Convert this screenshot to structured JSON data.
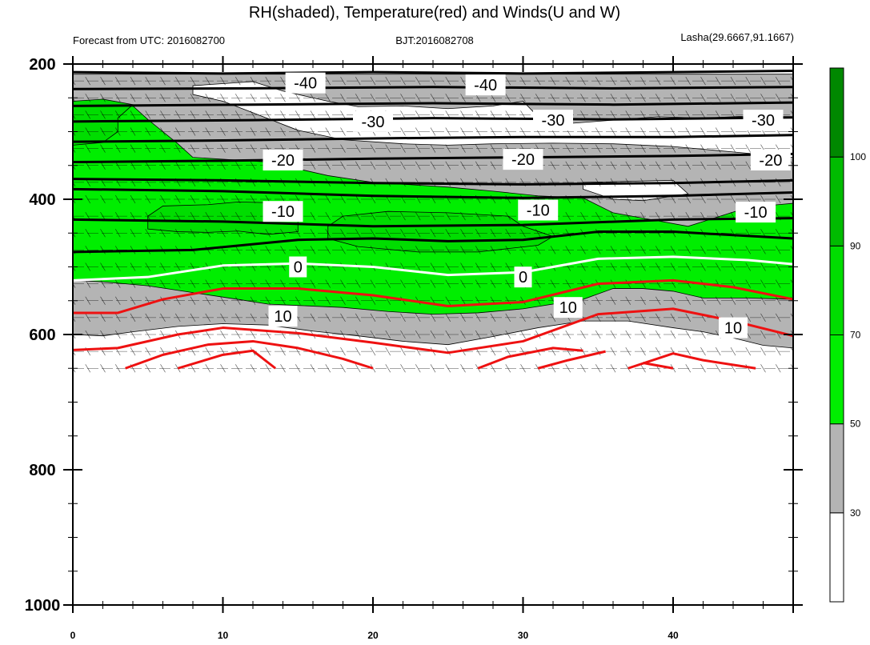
{
  "title": "RH(shaded), Temperature(red) and Winds(U and W)",
  "left_subtitle": "Forecast from UTC: 2016082700",
  "center_subtitle": "BJT:2016082708",
  "right_subtitle": "Lasha(29.6667,91.1667)",
  "chart_data": {
    "type": "contour",
    "xlim": [
      0,
      48
    ],
    "ylim": [
      200,
      1000
    ],
    "y_reversed": true,
    "x_ticks": [
      0,
      10,
      20,
      30,
      40
    ],
    "y_ticks": [
      200,
      400,
      600,
      800,
      1000
    ],
    "data_bottom_level": 650,
    "rh_colorbar": {
      "levels": [
        30,
        50,
        70,
        90,
        100
      ],
      "colors": [
        "#ffffff",
        "#b4b4b4",
        "#00ee00",
        "#00dd00",
        "#00bb00",
        "#008800"
      ]
    },
    "rh_regions": [
      {
        "rh_class": "gray",
        "points": [
          [
            0,
            215
          ],
          [
            48,
            215
          ],
          [
            48,
            620
          ],
          [
            46,
            616
          ],
          [
            44,
            605
          ],
          [
            42,
            596
          ],
          [
            40,
            590
          ],
          [
            37,
            580
          ],
          [
            34,
            580
          ],
          [
            31,
            590
          ],
          [
            28,
            603
          ],
          [
            25,
            615
          ],
          [
            22,
            610
          ],
          [
            19,
            602
          ],
          [
            16,
            595
          ],
          [
            13,
            586
          ],
          [
            10,
            584
          ],
          [
            7,
            588
          ],
          [
            4,
            596
          ],
          [
            2,
            602
          ],
          [
            0,
            600
          ]
        ]
      },
      {
        "rh_class": "white",
        "points": [
          [
            8,
            232
          ],
          [
            12,
            226
          ],
          [
            14,
            240
          ],
          [
            17,
            255
          ],
          [
            19,
            263
          ],
          [
            22,
            262
          ],
          [
            25,
            266
          ],
          [
            28,
            262
          ],
          [
            30,
            255
          ],
          [
            31,
            278
          ],
          [
            33,
            288
          ],
          [
            36,
            283
          ],
          [
            39,
            278
          ],
          [
            42,
            280
          ],
          [
            45,
            277
          ],
          [
            48,
            278
          ],
          [
            48,
            338
          ],
          [
            44,
            330
          ],
          [
            40,
            322
          ],
          [
            36,
            318
          ],
          [
            32,
            317
          ],
          [
            28,
            318
          ],
          [
            25,
            320
          ],
          [
            22,
            318
          ],
          [
            18,
            312
          ],
          [
            15,
            298
          ],
          [
            12,
            272
          ],
          [
            10,
            255
          ],
          [
            8,
            245
          ]
        ]
      },
      {
        "rh_class": "white",
        "points": [
          [
            34,
            375
          ],
          [
            40,
            372
          ],
          [
            41,
            392
          ],
          [
            38,
            402
          ],
          [
            36,
            400
          ],
          [
            34,
            385
          ]
        ]
      },
      {
        "rh_class": "green",
        "points": [
          [
            0,
            260
          ],
          [
            4,
            262
          ],
          [
            5,
            282
          ],
          [
            6,
            300
          ],
          [
            7,
            318
          ],
          [
            8,
            338
          ],
          [
            13,
            345
          ],
          [
            17,
            365
          ],
          [
            20,
            375
          ],
          [
            25,
            382
          ],
          [
            28,
            388
          ],
          [
            31,
            395
          ],
          [
            34,
            398
          ],
          [
            36,
            420
          ],
          [
            38,
            428
          ],
          [
            41,
            440
          ],
          [
            45,
            412
          ],
          [
            47,
            408
          ],
          [
            48,
            406
          ],
          [
            48,
            548
          ],
          [
            45,
            546
          ],
          [
            42,
            546
          ],
          [
            40,
            536
          ],
          [
            38,
            532
          ],
          [
            36,
            532
          ],
          [
            34,
            548
          ],
          [
            30,
            562
          ],
          [
            27,
            568
          ],
          [
            24,
            570
          ],
          [
            21,
            566
          ],
          [
            18,
            560
          ],
          [
            15,
            557
          ],
          [
            13,
            555
          ],
          [
            11,
            548
          ],
          [
            8,
            538
          ],
          [
            5,
            528
          ],
          [
            2,
            522
          ],
          [
            0,
            520
          ]
        ]
      },
      {
        "rh_class": "green_dark",
        "points": [
          [
            6,
            410
          ],
          [
            9,
            408
          ],
          [
            11,
            404
          ],
          [
            13,
            405
          ],
          [
            14,
            418
          ],
          [
            15,
            432
          ],
          [
            15,
            448
          ],
          [
            13,
            452
          ],
          [
            11,
            447
          ],
          [
            9,
            449
          ],
          [
            7,
            448
          ],
          [
            5,
            444
          ],
          [
            5,
            425
          ]
        ]
      },
      {
        "rh_class": "green_dark",
        "points": [
          [
            18,
            425
          ],
          [
            21,
            418
          ],
          [
            25,
            420
          ],
          [
            29,
            425
          ],
          [
            30,
            440
          ],
          [
            32,
            455
          ],
          [
            31,
            468
          ],
          [
            27,
            478
          ],
          [
            23,
            478
          ],
          [
            19,
            470
          ],
          [
            17,
            458
          ],
          [
            17,
            440
          ]
        ]
      },
      {
        "rh_class": "green_dark",
        "points": [
          [
            0,
            255
          ],
          [
            2,
            252
          ],
          [
            4,
            260
          ],
          [
            3,
            280
          ],
          [
            3,
            300
          ],
          [
            2,
            316
          ],
          [
            0,
            320
          ]
        ]
      }
    ],
    "temperature_contours": [
      {
        "value": -40,
        "color": "black",
        "points": [
          [
            0,
            212
          ],
          [
            10,
            214
          ],
          [
            20,
            212
          ],
          [
            30,
            214
          ],
          [
            40,
            212
          ],
          [
            48,
            210
          ]
        ]
      },
      {
        "value": -40,
        "color": "black",
        "points": [
          [
            0,
            237
          ],
          [
            12,
            236
          ],
          [
            24,
            234
          ],
          [
            36,
            236
          ],
          [
            48,
            234
          ]
        ]
      },
      {
        "value": -30,
        "color": "black",
        "points": [
          [
            0,
            262
          ],
          [
            12,
            260
          ],
          [
            24,
            258
          ],
          [
            36,
            260
          ],
          [
            48,
            257
          ]
        ]
      },
      {
        "value": -30,
        "color": "black",
        "points": [
          [
            0,
            285
          ],
          [
            12,
            283
          ],
          [
            24,
            280
          ],
          [
            36,
            282
          ],
          [
            48,
            279
          ]
        ]
      },
      {
        "value": -30,
        "color": "black",
        "points": [
          [
            0,
            315
          ],
          [
            10,
            313
          ],
          [
            20,
            310
          ],
          [
            30,
            308
          ],
          [
            40,
            308
          ],
          [
            48,
            305
          ]
        ]
      },
      {
        "value": -20,
        "color": "black",
        "points": [
          [
            0,
            345
          ],
          [
            10,
            343
          ],
          [
            20,
            340
          ],
          [
            30,
            338
          ],
          [
            40,
            336
          ],
          [
            48,
            333
          ]
        ]
      },
      {
        "value": -20,
        "color": "black",
        "points": [
          [
            0,
            370
          ],
          [
            10,
            372
          ],
          [
            20,
            376
          ],
          [
            30,
            378
          ],
          [
            40,
            376
          ],
          [
            48,
            372
          ]
        ]
      },
      {
        "value": -10,
        "color": "black",
        "points": [
          [
            0,
            385
          ],
          [
            10,
            388
          ],
          [
            20,
            395
          ],
          [
            30,
            398
          ],
          [
            40,
            395
          ],
          [
            48,
            390
          ]
        ]
      },
      {
        "value": -10,
        "color": "black",
        "points": [
          [
            0,
            430
          ],
          [
            10,
            433
          ],
          [
            20,
            440
          ],
          [
            30,
            438
          ],
          [
            40,
            430
          ],
          [
            48,
            428
          ]
        ]
      },
      {
        "value": -10,
        "color": "black",
        "points": [
          [
            0,
            478
          ],
          [
            8,
            475
          ],
          [
            15,
            460
          ],
          [
            20,
            458
          ],
          [
            25,
            462
          ],
          [
            30,
            460
          ],
          [
            35,
            448
          ],
          [
            40,
            448
          ],
          [
            48,
            458
          ]
        ]
      },
      {
        "value": 0,
        "color": "white",
        "points": [
          [
            0,
            520
          ],
          [
            5,
            515
          ],
          [
            10,
            498
          ],
          [
            15,
            495
          ],
          [
            20,
            500
          ],
          [
            25,
            512
          ],
          [
            30,
            508
          ],
          [
            35,
            488
          ],
          [
            40,
            485
          ],
          [
            45,
            490
          ],
          [
            48,
            496
          ]
        ]
      },
      {
        "value": 10,
        "color": "red",
        "points": [
          [
            0,
            568
          ],
          [
            3,
            568
          ],
          [
            6,
            548
          ],
          [
            10,
            532
          ],
          [
            15,
            532
          ],
          [
            20,
            542
          ],
          [
            25,
            558
          ],
          [
            30,
            552
          ],
          [
            35,
            525
          ],
          [
            40,
            520
          ],
          [
            44,
            530
          ],
          [
            48,
            548
          ]
        ]
      },
      {
        "value": 10,
        "color": "red",
        "points": [
          [
            0,
            623
          ],
          [
            3,
            620
          ],
          [
            7,
            600
          ],
          [
            10,
            590
          ],
          [
            15,
            598
          ],
          [
            20,
            612
          ],
          [
            25,
            627
          ],
          [
            30,
            610
          ],
          [
            35,
            570
          ],
          [
            40,
            562
          ],
          [
            44,
            580
          ],
          [
            48,
            602
          ]
        ]
      },
      {
        "value": 10,
        "color": "red",
        "points": [
          [
            3.5,
            650
          ],
          [
            6,
            630
          ],
          [
            9,
            615
          ],
          [
            12,
            610
          ],
          [
            15,
            620
          ],
          [
            18,
            636
          ],
          [
            20,
            650
          ]
        ]
      },
      {
        "value": 10,
        "color": "red",
        "points": [
          [
            7,
            650
          ],
          [
            10,
            630
          ],
          [
            12,
            624
          ],
          [
            13.5,
            650
          ]
        ]
      },
      {
        "value": 10,
        "color": "red",
        "points": [
          [
            27,
            650
          ],
          [
            29,
            633
          ],
          [
            32,
            620
          ],
          [
            34,
            624
          ]
        ]
      },
      {
        "value": 10,
        "color": "red",
        "points": [
          [
            31,
            650
          ],
          [
            33,
            638
          ],
          [
            35.5,
            625
          ]
        ]
      },
      {
        "value": 10,
        "color": "red",
        "points": [
          [
            37,
            650
          ],
          [
            40,
            628
          ],
          [
            42,
            638
          ],
          [
            45.5,
            650
          ]
        ]
      },
      {
        "value": 10,
        "color": "red",
        "points": [
          [
            38,
            642
          ],
          [
            40,
            650
          ]
        ]
      }
    ],
    "temperature_labels": [
      {
        "text": "-40",
        "x": 15.5,
        "y": 228
      },
      {
        "text": "-40",
        "x": 27.5,
        "y": 231
      },
      {
        "text": "-30",
        "x": 20,
        "y": 285
      },
      {
        "text": "-30",
        "x": 32,
        "y": 283
      },
      {
        "text": "-30",
        "x": 46,
        "y": 283
      },
      {
        "text": "-20",
        "x": 14,
        "y": 342
      },
      {
        "text": "-20",
        "x": 30,
        "y": 341
      },
      {
        "text": "-20",
        "x": 46.5,
        "y": 342
      },
      {
        "text": "-10",
        "x": 14,
        "y": 418
      },
      {
        "text": "-10",
        "x": 31,
        "y": 416
      },
      {
        "text": "-10",
        "x": 45.5,
        "y": 419
      },
      {
        "text": "0",
        "x": 15,
        "y": 500
      },
      {
        "text": "0",
        "x": 30,
        "y": 515
      },
      {
        "text": "10",
        "x": 14,
        "y": 573
      },
      {
        "text": "10",
        "x": 33,
        "y": 560
      },
      {
        "text": "10",
        "x": 44,
        "y": 590
      }
    ],
    "wind_levels": [
      225,
      250,
      275,
      300,
      325,
      350,
      375,
      400,
      425,
      450,
      475,
      500,
      525,
      550,
      575,
      600,
      625,
      650
    ],
    "wind_times": [
      0,
      1,
      2,
      3,
      4,
      5,
      6,
      7,
      8,
      9,
      10,
      11,
      12,
      13,
      14,
      15,
      16,
      17,
      18,
      19,
      20,
      21,
      22,
      23,
      24,
      25,
      26,
      27,
      28,
      29,
      30,
      31,
      32,
      33,
      34,
      35,
      36,
      37,
      38,
      39,
      40,
      41,
      42,
      43,
      44,
      45,
      46,
      47,
      48
    ]
  }
}
